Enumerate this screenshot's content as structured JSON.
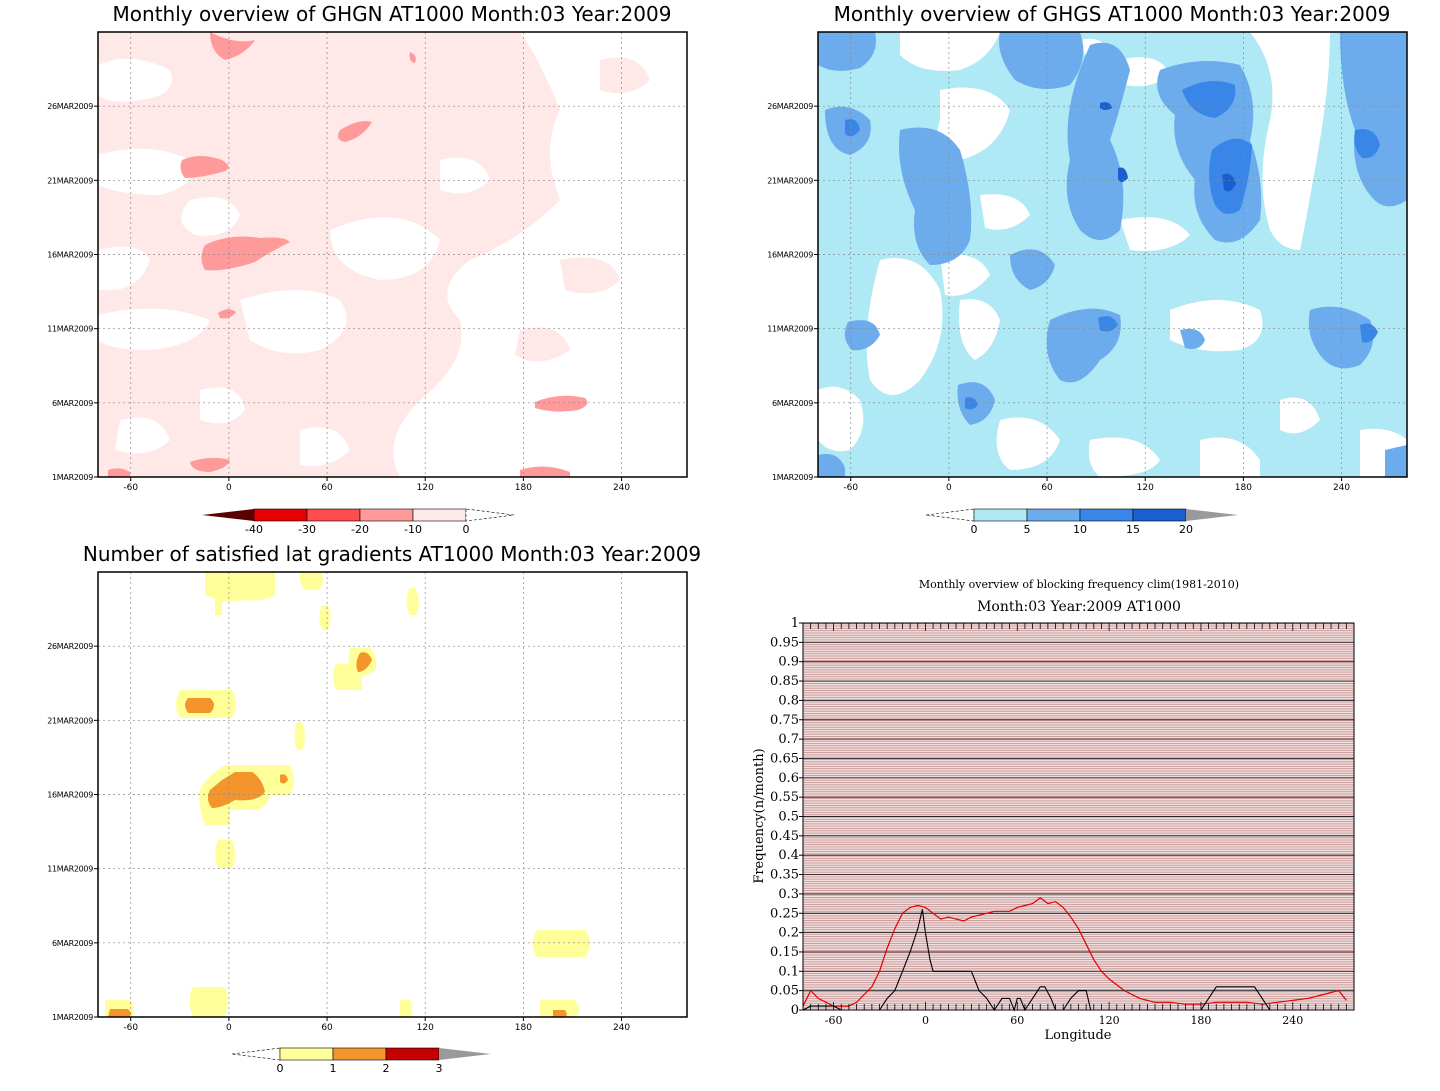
{
  "chart_data": [
    {
      "type": "heatmap",
      "title": "Monthly overview of GHGN AT1000 Month:03 Year:2009",
      "x_ticks": [
        "-60",
        "0",
        "60",
        "120",
        "180",
        "240"
      ],
      "y_ticks": [
        "1MAR2009",
        "6MAR2009",
        "11MAR2009",
        "16MAR2009",
        "21MAR2009",
        "26MAR2009"
      ],
      "xlim": [
        -80,
        280
      ],
      "colorbar": {
        "labels": [
          "-40",
          "-30",
          "-20",
          "-10",
          "0"
        ],
        "colors": [
          "#cc0000",
          "#ff3a3a",
          "#ff7a7a",
          "#ffb0b0",
          "#ffe6e6"
        ]
      }
    },
    {
      "type": "heatmap",
      "title": "Monthly overview of GHGS AT1000 Month:03 Year:2009",
      "x_ticks": [
        "-60",
        "0",
        "60",
        "120",
        "180",
        "240"
      ],
      "y_ticks": [
        "1MAR2009",
        "6MAR2009",
        "11MAR2009",
        "16MAR2009",
        "21MAR2009",
        "26MAR2009"
      ],
      "xlim": [
        -80,
        280
      ],
      "colorbar": {
        "labels": [
          "0",
          "5",
          "10",
          "15",
          "20"
        ],
        "colors": [
          "#aee9f5",
          "#6cacec",
          "#3a86e8",
          "#1a5fd0"
        ]
      }
    },
    {
      "type": "heatmap",
      "title": "Number of satisfied lat gradients AT1000 Month:03 Year:2009",
      "x_ticks": [
        "-60",
        "0",
        "60",
        "120",
        "180",
        "240"
      ],
      "y_ticks": [
        "1MAR2009",
        "6MAR2009",
        "11MAR2009",
        "16MAR2009",
        "21MAR2009",
        "26MAR2009"
      ],
      "xlim": [
        -80,
        280
      ],
      "colorbar": {
        "labels": [
          "0",
          "1",
          "2",
          "3"
        ],
        "colors": [
          "#ffff9a",
          "#f3952b",
          "#c40000"
        ]
      }
    },
    {
      "type": "line",
      "title": "Monthly overview of blocking frequency clim(1981-2010)",
      "subtitle": "Month:03 Year:2009  AT1000",
      "xlabel": "Longitude",
      "ylabel": "Frequency(n/month)",
      "xlim": [
        -80,
        280
      ],
      "ylim": [
        0,
        1
      ],
      "x_ticks": [
        "-60",
        "0",
        "60",
        "120",
        "180",
        "240"
      ],
      "y_ticks": [
        "0",
        "0.05",
        "0.1",
        "0.15",
        "0.2",
        "0.25",
        "0.3",
        "0.35",
        "0.4",
        "0.45",
        "0.5",
        "0.55",
        "0.6",
        "0.65",
        "0.7",
        "0.75",
        "0.8",
        "0.85",
        "0.9",
        "0.95",
        "1"
      ],
      "series": [
        {
          "color": "#e00000",
          "x": [
            -80,
            -75,
            -70,
            -65,
            -60,
            -55,
            -50,
            -45,
            -40,
            -35,
            -30,
            -25,
            -20,
            -15,
            -10,
            -5,
            0,
            5,
            10,
            15,
            20,
            25,
            30,
            35,
            40,
            45,
            50,
            55,
            60,
            65,
            70,
            75,
            80,
            85,
            90,
            95,
            100,
            105,
            110,
            115,
            120,
            130,
            140,
            150,
            160,
            170,
            180,
            190,
            200,
            210,
            220,
            230,
            240,
            250,
            260,
            270,
            275
          ],
          "y": [
            0.01,
            0.05,
            0.03,
            0.02,
            0.01,
            0.01,
            0.01,
            0.02,
            0.04,
            0.06,
            0.1,
            0.16,
            0.21,
            0.25,
            0.265,
            0.27,
            0.265,
            0.25,
            0.235,
            0.24,
            0.235,
            0.23,
            0.24,
            0.245,
            0.25,
            0.255,
            0.255,
            0.255,
            0.265,
            0.27,
            0.275,
            0.29,
            0.275,
            0.28,
            0.265,
            0.24,
            0.21,
            0.17,
            0.13,
            0.1,
            0.08,
            0.05,
            0.03,
            0.02,
            0.02,
            0.015,
            0.015,
            0.02,
            0.02,
            0.02,
            0.015,
            0.02,
            0.025,
            0.03,
            0.04,
            0.05,
            0.025
          ]
        },
        {
          "color": "#000000",
          "x": [
            -80,
            -75,
            -60,
            -55,
            -30,
            -25,
            -20,
            -15,
            -10,
            -5,
            -2,
            0,
            3,
            5,
            8,
            10,
            30,
            35,
            40,
            45,
            50,
            55,
            58,
            60,
            62,
            65,
            70,
            75,
            78,
            82,
            85,
            90,
            95,
            100,
            105,
            108,
            180,
            185,
            190,
            200,
            215,
            220,
            225,
            280
          ],
          "y": [
            0.0,
            0.01,
            0.01,
            0.0,
            0.0,
            0.03,
            0.05,
            0.1,
            0.15,
            0.21,
            0.26,
            0.2,
            0.13,
            0.1,
            0.1,
            0.1,
            0.1,
            0.05,
            0.03,
            0.0,
            0.03,
            0.03,
            0.0,
            0.03,
            0.03,
            0.0,
            0.03,
            0.06,
            0.06,
            0.03,
            0.0,
            0.0,
            0.03,
            0.05,
            0.05,
            0.0,
            0.0,
            0.03,
            0.06,
            0.06,
            0.06,
            0.03,
            0.0,
            0.0
          ]
        }
      ]
    }
  ]
}
